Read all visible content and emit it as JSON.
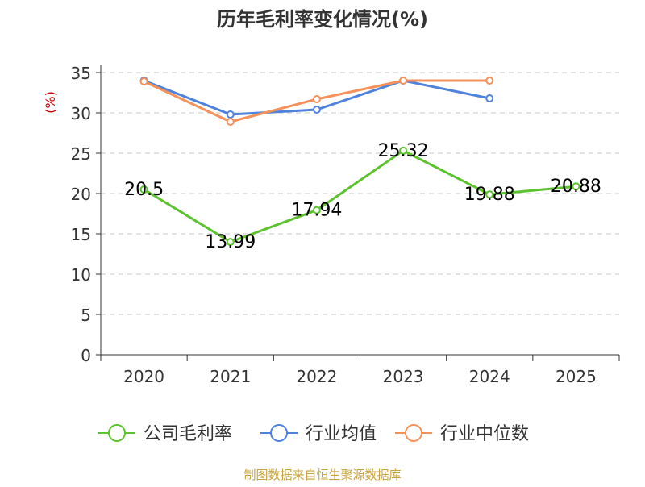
{
  "chart_data": {
    "type": "line",
    "title": "历年毛利率变化情况(%)",
    "ylabel": "(%)",
    "xlabel": "",
    "categories": [
      "2020",
      "2021",
      "2022",
      "2023",
      "2024",
      "2025"
    ],
    "ylim": [
      0,
      35
    ],
    "yticks": [
      0,
      5,
      10,
      15,
      20,
      25,
      30,
      35
    ],
    "grid": true,
    "legend_position": "bottom",
    "series": [
      {
        "name": "公司毛利率",
        "color": "#5cc22e",
        "values": [
          20.5,
          13.99,
          17.94,
          25.32,
          19.88,
          20.88
        ],
        "labels": [
          "20.5",
          "13.99",
          "17.94",
          "25.32",
          "19.88",
          "20.88"
        ]
      },
      {
        "name": "行业均值",
        "color": "#4f82dc",
        "values": [
          34.0,
          29.8,
          30.4,
          34.0,
          31.8,
          null
        ]
      },
      {
        "name": "行业中位数",
        "color": "#f5915a",
        "values": [
          33.9,
          28.9,
          31.7,
          34.0,
          34.0,
          null
        ]
      }
    ]
  },
  "footer": {
    "source": "制图数据来自恒生聚源数据库"
  }
}
